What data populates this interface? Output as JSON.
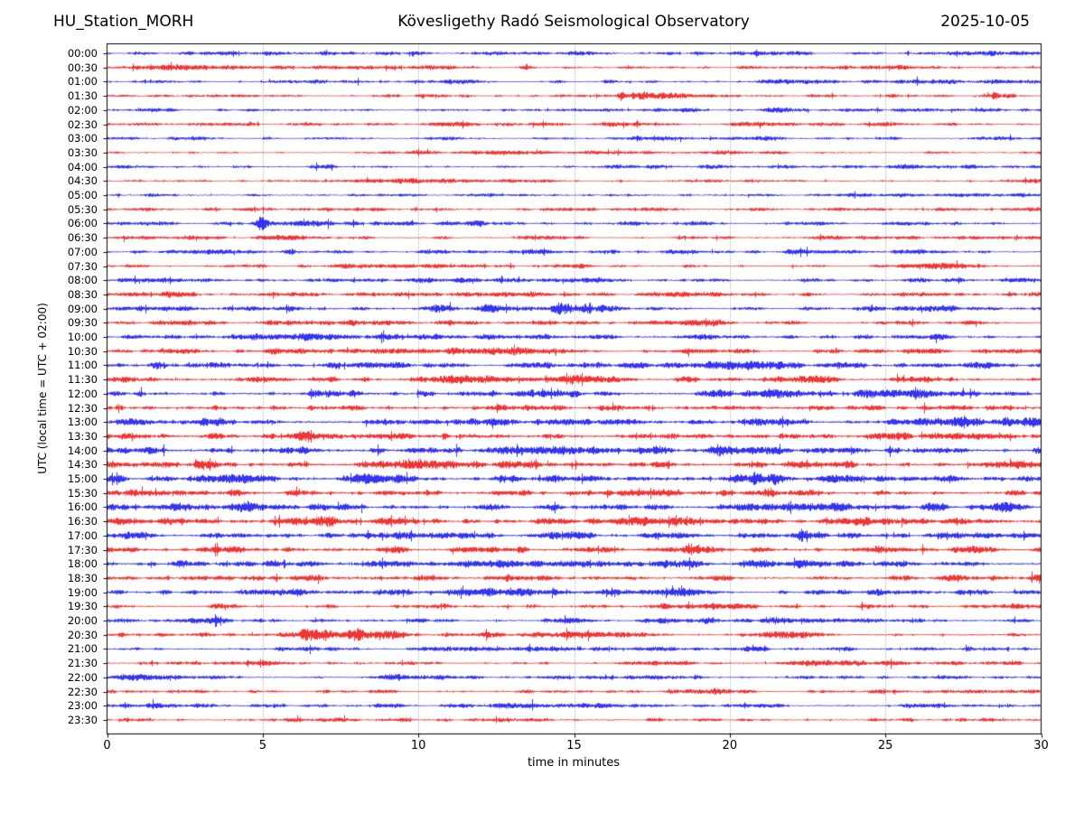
{
  "header": {
    "station": "HU_Station_MORH",
    "observatory": "Kövesligethy Radó Seismological Observatory",
    "date": "2025-10-05"
  },
  "chart_data": {
    "type": "line",
    "variant": "helicorder-day-plot",
    "title": "HU_Station_MORH — Kövesligethy Radó Seismological Observatory — 2025-10-05",
    "xlabel": "time in minutes",
    "ylabel": "UTC (local time = UTC + 02:00)",
    "xlim": [
      0,
      30
    ],
    "x_ticks": [
      0,
      5,
      10,
      15,
      20,
      25,
      30
    ],
    "grid": "vertical-dotted-every-5-min",
    "legend": "none",
    "trace_colors": {
      "blue": "#0000ee",
      "red": "#ee0000"
    },
    "row_minutes": 30,
    "rows": [
      {
        "label": "00:00",
        "color": "blue",
        "amp": 1.7,
        "events": []
      },
      {
        "label": "00:30",
        "color": "red",
        "amp": 1.6,
        "events": []
      },
      {
        "label": "01:00",
        "color": "blue",
        "amp": 1.7,
        "events": []
      },
      {
        "label": "01:30",
        "color": "red",
        "amp": 1.6,
        "events": [
          {
            "t": 16.55,
            "peak": 6,
            "decay": 1.1
          },
          {
            "t": 28.55,
            "peak": 3.2,
            "decay": 0.6
          }
        ]
      },
      {
        "label": "02:00",
        "color": "blue",
        "amp": 1.7,
        "events": []
      },
      {
        "label": "02:30",
        "color": "red",
        "amp": 1.6,
        "events": [
          {
            "t": 4.6,
            "peak": 2.2,
            "decay": 0.2
          }
        ]
      },
      {
        "label": "03:00",
        "color": "blue",
        "amp": 1.6,
        "events": []
      },
      {
        "label": "03:30",
        "color": "red",
        "amp": 1.5,
        "events": []
      },
      {
        "label": "04:00",
        "color": "blue",
        "amp": 1.7,
        "events": []
      },
      {
        "label": "04:30",
        "color": "red",
        "amp": 1.5,
        "events": []
      },
      {
        "label": "05:00",
        "color": "blue",
        "amp": 1.5,
        "events": []
      },
      {
        "label": "05:30",
        "color": "red",
        "amp": 1.6,
        "events": []
      },
      {
        "label": "06:00",
        "color": "blue",
        "amp": 2.0,
        "events": [
          {
            "t": 5.0,
            "peak": 4.5,
            "decay": 0.12
          }
        ]
      },
      {
        "label": "06:30",
        "color": "red",
        "amp": 1.7,
        "events": []
      },
      {
        "label": "07:00",
        "color": "blue",
        "amp": 1.9,
        "events": [
          {
            "t": 6.0,
            "peak": 2.4,
            "decay": 0.12
          }
        ]
      },
      {
        "label": "07:30",
        "color": "red",
        "amp": 1.9,
        "events": []
      },
      {
        "label": "08:00",
        "color": "blue",
        "amp": 2.1,
        "events": [
          {
            "t": 5.75,
            "peak": 2.6,
            "decay": 0.15
          }
        ]
      },
      {
        "label": "08:30",
        "color": "red",
        "amp": 2.0,
        "events": []
      },
      {
        "label": "09:00",
        "color": "blue",
        "amp": 2.3,
        "events": [
          {
            "t": 14.4,
            "peak": 2.6,
            "decay": 1.0
          }
        ]
      },
      {
        "label": "09:30",
        "color": "red",
        "amp": 2.2,
        "events": []
      },
      {
        "label": "10:00",
        "color": "blue",
        "amp": 2.4,
        "events": []
      },
      {
        "label": "10:30",
        "color": "red",
        "amp": 2.3,
        "events": [
          {
            "t": 15.75,
            "peak": 2.2,
            "decay": 0.12
          }
        ]
      },
      {
        "label": "11:00",
        "color": "blue",
        "amp": 2.5,
        "events": []
      },
      {
        "label": "11:30",
        "color": "red",
        "amp": 2.9,
        "events": []
      },
      {
        "label": "12:00",
        "color": "blue",
        "amp": 3.2,
        "events": [
          {
            "t": 7.5,
            "peak": 1.7,
            "decay": 1.2
          }
        ]
      },
      {
        "label": "12:30",
        "color": "red",
        "amp": 3.0,
        "events": []
      },
      {
        "label": "13:00",
        "color": "blue",
        "amp": 3.4,
        "events": []
      },
      {
        "label": "13:30",
        "color": "red",
        "amp": 3.2,
        "events": []
      },
      {
        "label": "14:00",
        "color": "blue",
        "amp": 3.4,
        "events": []
      },
      {
        "label": "14:30",
        "color": "red",
        "amp": 3.5,
        "events": []
      },
      {
        "label": "15:00",
        "color": "blue",
        "amp": 3.3,
        "events": [
          {
            "t": 20.85,
            "peak": 2.8,
            "decay": 0.45
          }
        ]
      },
      {
        "label": "15:30",
        "color": "red",
        "amp": 3.1,
        "events": []
      },
      {
        "label": "16:00",
        "color": "blue",
        "amp": 3.2,
        "events": []
      },
      {
        "label": "16:30",
        "color": "red",
        "amp": 3.1,
        "events": []
      },
      {
        "label": "17:00",
        "color": "blue",
        "amp": 3.0,
        "events": [
          {
            "t": 22.35,
            "peak": 2.2,
            "decay": 0.5
          }
        ]
      },
      {
        "label": "17:30",
        "color": "red",
        "amp": 3.0,
        "events": []
      },
      {
        "label": "18:00",
        "color": "blue",
        "amp": 2.9,
        "events": []
      },
      {
        "label": "18:30",
        "color": "red",
        "amp": 2.8,
        "events": []
      },
      {
        "label": "19:00",
        "color": "blue",
        "amp": 2.6,
        "events": []
      },
      {
        "label": "19:30",
        "color": "red",
        "amp": 2.4,
        "events": []
      },
      {
        "label": "20:00",
        "color": "blue",
        "amp": 2.3,
        "events": []
      },
      {
        "label": "20:30",
        "color": "red",
        "amp": 2.4,
        "events": [
          {
            "t": 6.35,
            "peak": 2.8,
            "decay": 0.7
          },
          {
            "t": 7.85,
            "peak": 3.5,
            "decay": 0.7
          }
        ]
      },
      {
        "label": "21:00",
        "color": "blue",
        "amp": 2.2,
        "events": []
      },
      {
        "label": "21:30",
        "color": "red",
        "amp": 2.1,
        "events": []
      },
      {
        "label": "22:00",
        "color": "blue",
        "amp": 2.1,
        "events": []
      },
      {
        "label": "22:30",
        "color": "red",
        "amp": 2.0,
        "events": []
      },
      {
        "label": "23:00",
        "color": "blue",
        "amp": 2.0,
        "events": []
      },
      {
        "label": "23:30",
        "color": "red",
        "amp": 1.9,
        "events": []
      }
    ]
  }
}
